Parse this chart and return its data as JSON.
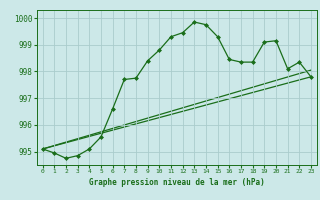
{
  "bg_color": "#cce8e8",
  "grid_color": "#aacccc",
  "line_color": "#1a6e1a",
  "marker_color": "#1a6e1a",
  "xlabel": "Graphe pression niveau de la mer (hPa)",
  "ylim": [
    994.5,
    1000.3
  ],
  "xlim": [
    -0.5,
    23.5
  ],
  "yticks": [
    995,
    996,
    997,
    998,
    999,
    1000
  ],
  "xticks": [
    0,
    1,
    2,
    3,
    4,
    5,
    6,
    7,
    8,
    9,
    10,
    11,
    12,
    13,
    14,
    15,
    16,
    17,
    18,
    19,
    20,
    21,
    22,
    23
  ],
  "series1": [
    995.1,
    994.95,
    994.75,
    994.85,
    995.1,
    995.55,
    996.6,
    997.7,
    997.75,
    998.4,
    998.8,
    999.3,
    999.45,
    999.85,
    999.75,
    999.3,
    998.45,
    998.35,
    998.35,
    999.1,
    999.15,
    998.1,
    998.35,
    997.8
  ],
  "line2": [
    [
      0,
      23
    ],
    [
      995.1,
      997.8
    ]
  ],
  "line3": [
    [
      0,
      23
    ],
    [
      995.1,
      998.05
    ]
  ]
}
